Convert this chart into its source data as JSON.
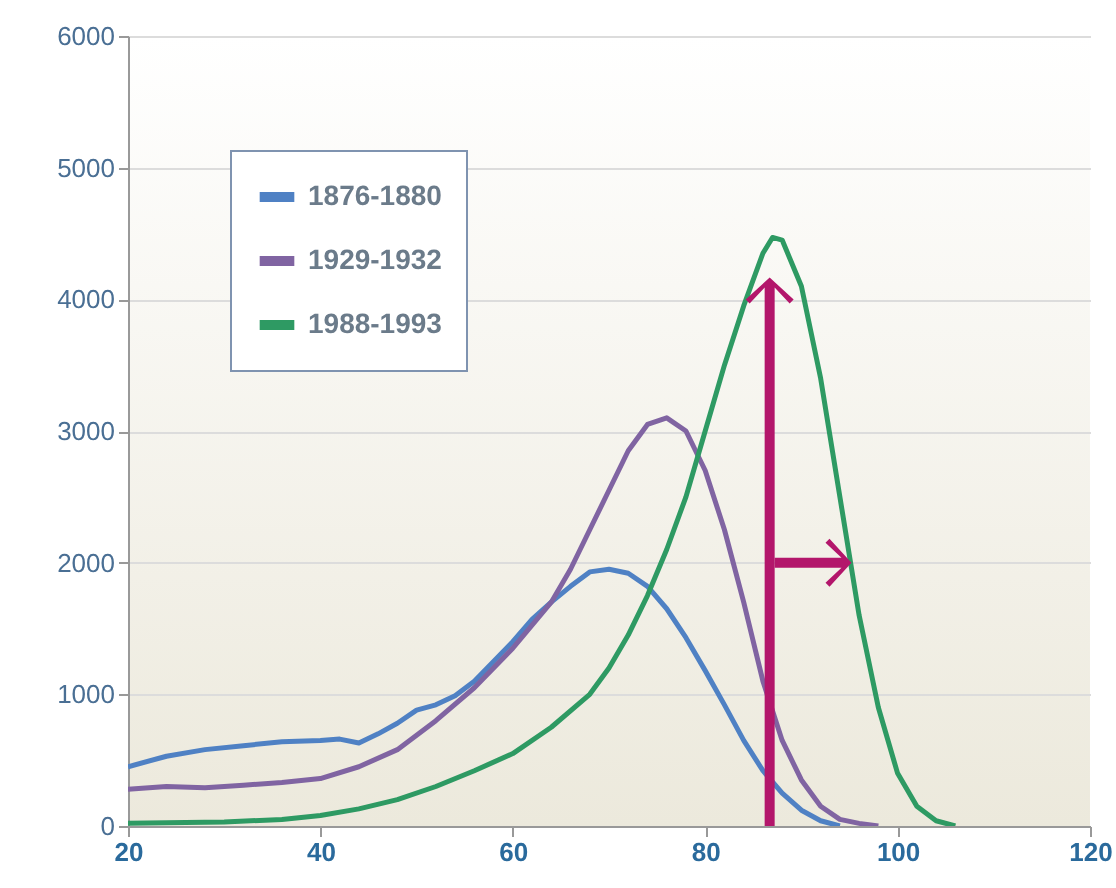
{
  "chart_data": {
    "type": "line",
    "xlim": [
      20,
      120
    ],
    "xticks": [
      20,
      40,
      60,
      80,
      100,
      120
    ],
    "ylim": [
      0,
      6000
    ],
    "yticks": [
      0,
      1000,
      2000,
      3000,
      4000,
      5000,
      6000
    ],
    "grid": "y",
    "legend": "top left",
    "series": [
      {
        "name": "1876-1880",
        "color": "#4f81c4",
        "x": [
          20,
          24,
          28,
          32,
          36,
          40,
          42,
          44,
          46,
          48,
          50,
          52,
          54,
          56,
          58,
          60,
          62,
          64,
          66,
          68,
          70,
          72,
          74,
          76,
          78,
          80,
          82,
          84,
          86,
          88,
          90,
          92,
          94
        ],
        "values": [
          450,
          530,
          580,
          610,
          640,
          650,
          660,
          630,
          700,
          780,
          880,
          920,
          990,
          1100,
          1250,
          1400,
          1570,
          1700,
          1820,
          1930,
          1950,
          1920,
          1820,
          1650,
          1430,
          1180,
          920,
          650,
          420,
          250,
          120,
          40,
          0
        ]
      },
      {
        "name": "1929-1932",
        "color": "#8064a2",
        "x": [
          20,
          24,
          28,
          32,
          36,
          40,
          44,
          48,
          52,
          56,
          60,
          64,
          66,
          68,
          70,
          72,
          74,
          76,
          78,
          80,
          82,
          84,
          86,
          88,
          90,
          92,
          94,
          96,
          98
        ],
        "values": [
          280,
          300,
          290,
          310,
          330,
          360,
          450,
          580,
          800,
          1050,
          1350,
          1700,
          1950,
          2250,
          2550,
          2850,
          3050,
          3100,
          3000,
          2700,
          2250,
          1700,
          1100,
          650,
          350,
          150,
          50,
          20,
          0
        ]
      },
      {
        "name": "1988-1993",
        "color": "#2e9a63",
        "x": [
          20,
          30,
          36,
          40,
          44,
          48,
          52,
          56,
          60,
          64,
          68,
          70,
          72,
          74,
          76,
          78,
          80,
          82,
          84,
          86,
          87,
          88,
          90,
          92,
          94,
          96,
          98,
          100,
          102,
          104,
          106
        ],
        "values": [
          20,
          30,
          50,
          80,
          130,
          200,
          300,
          420,
          550,
          750,
          1000,
          1200,
          1450,
          1750,
          2100,
          2500,
          3000,
          3500,
          3950,
          4350,
          4470,
          4450,
          4100,
          3400,
          2500,
          1600,
          900,
          400,
          150,
          40,
          0
        ]
      }
    ]
  }
}
